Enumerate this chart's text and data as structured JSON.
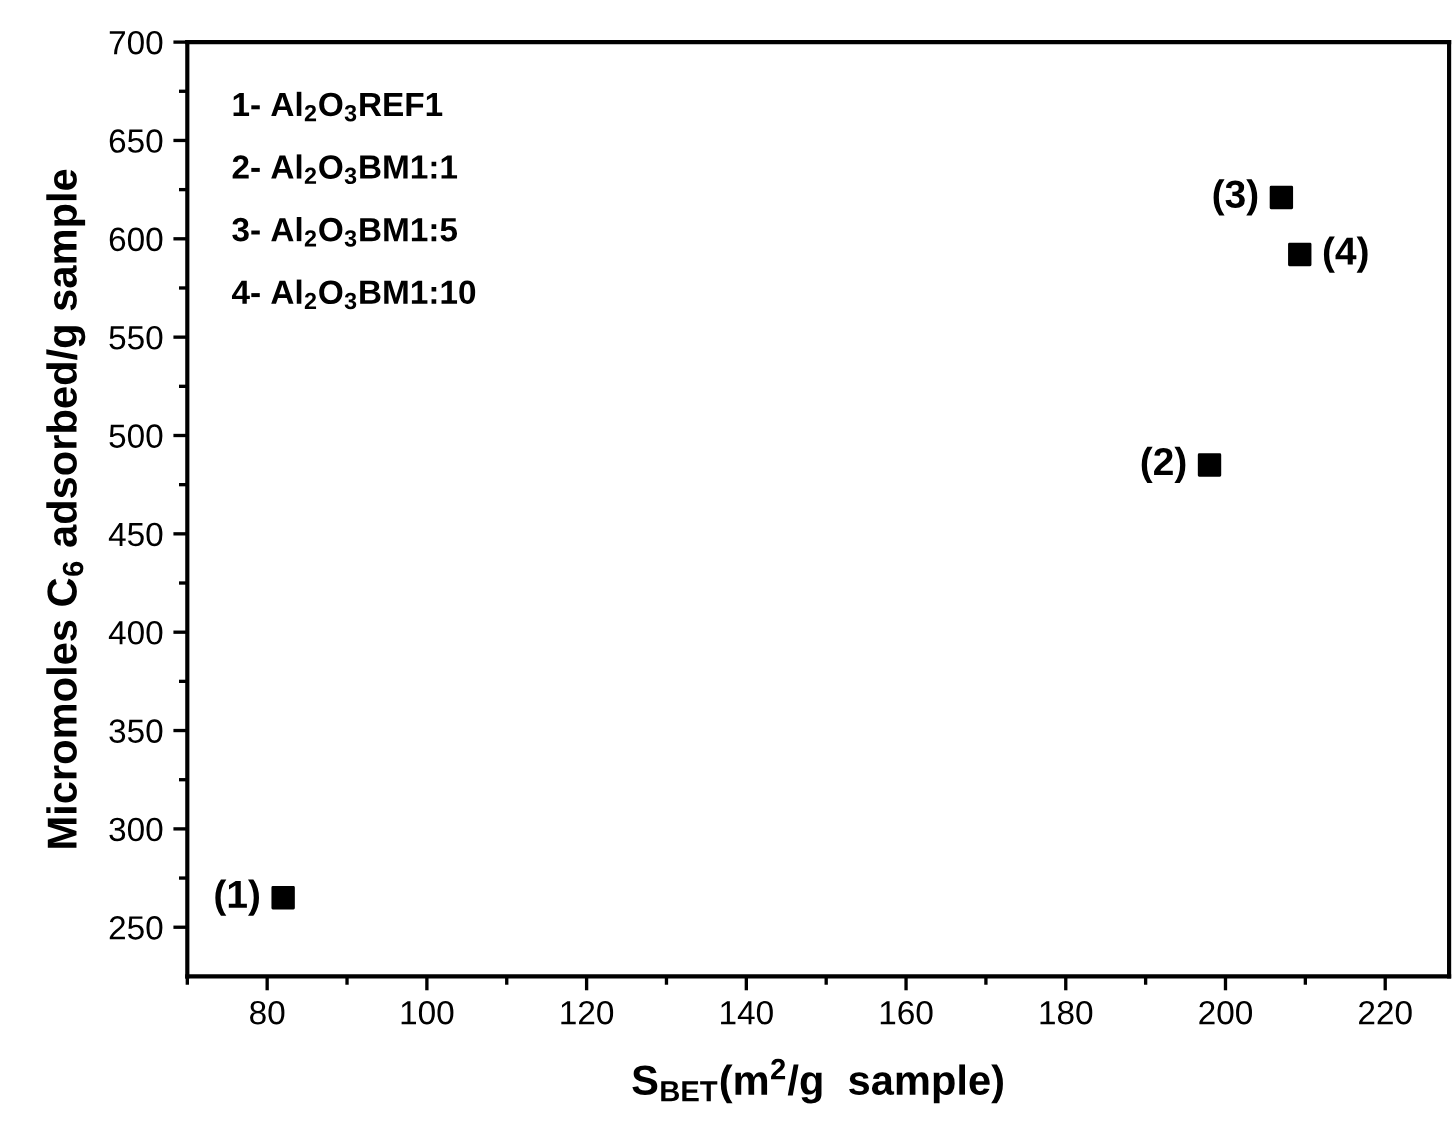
{
  "chart_data": {
    "type": "scatter",
    "xlabel": "S$_{BET}$(m$^{2}$/g  sample)",
    "ylabel": "Micromoles C$_{6}$ adsorbed/g sample",
    "x": [
      82,
      198,
      207,
      209.3
    ],
    "series": [
      {
        "color": "#000000",
        "values": [
          265,
          485,
          621,
          592
        ]
      }
    ],
    "marker": "square",
    "grid": false,
    "xlim": [
      70,
      228
    ],
    "ylim": [
      225,
      700
    ],
    "xticks": [
      {
        "value": 70,
        "label": null
      },
      80,
      {
        "value": 90,
        "label": null
      },
      100,
      {
        "value": 110,
        "label": null
      },
      120,
      {
        "value": 130,
        "label": null
      },
      140,
      {
        "value": 150,
        "label": null
      },
      160,
      {
        "value": 170,
        "label": null
      },
      180,
      {
        "value": 190,
        "label": null
      },
      200,
      {
        "value": 210,
        "label": null
      },
      220
    ],
    "yticks": [
      250,
      {
        "value": 275,
        "label": null
      },
      300,
      {
        "value": 325,
        "label": null
      },
      350,
      {
        "value": 375,
        "label": null
      },
      400,
      {
        "value": 425,
        "label": null
      },
      450,
      {
        "value": 475,
        "label": null
      },
      500,
      {
        "value": 525,
        "label": null
      },
      550,
      {
        "value": 575,
        "label": null
      },
      600,
      {
        "value": 625,
        "label": null
      },
      650,
      {
        "value": 675,
        "label": null
      },
      700
    ],
    "annotations": [
      "1- Al$_{2}$O$_{3}$REF1",
      "2- Al$_{2}$O$_{3}$BM1:1",
      "3- Al$_{2}$O$_{3}$BM1:5",
      "4- Al$_{2}$O$_{3}$BM1:10",
      {
        "text": "(1)",
        "x": 82,
        "y": 265
      },
      {
        "text": "(2)",
        "x": 198,
        "y": 485
      },
      {
        "text": "(3)",
        "x": 207,
        "y": 621
      },
      {
        "text": "(4)",
        "x": 209.3,
        "y": 592
      }
    ]
  }
}
